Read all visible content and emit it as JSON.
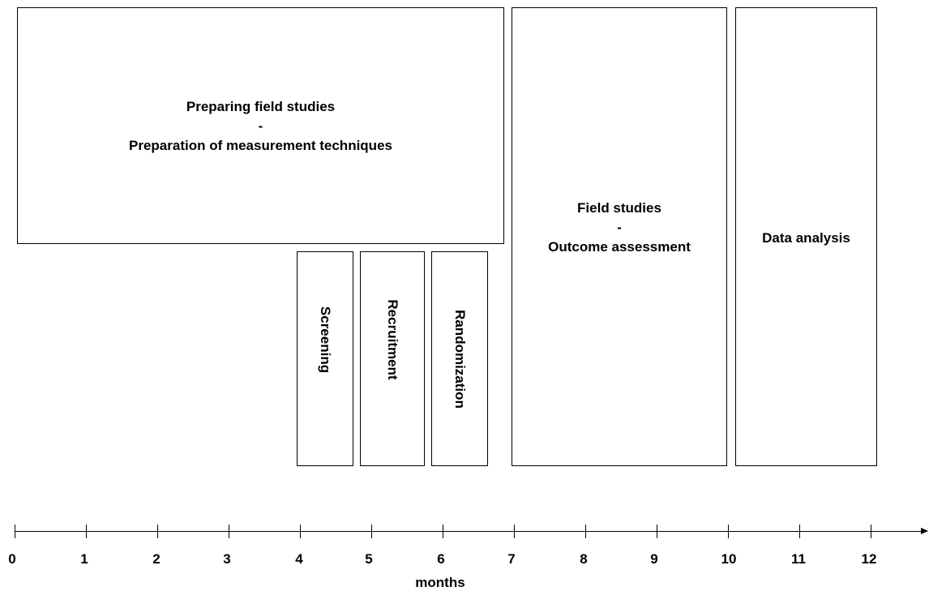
{
  "boxes": {
    "preparing": {
      "lines": [
        "Preparing field studies",
        "-",
        "Preparation of measurement techniques"
      ]
    },
    "field_studies": {
      "lines": [
        "Field studies",
        "-",
        "Outcome assessment"
      ]
    },
    "data_analysis": {
      "label": "Data analysis"
    },
    "screening": {
      "label": "Screening"
    },
    "recruitment": {
      "label": "Recruitment"
    },
    "randomization": {
      "label": "Randomization"
    }
  },
  "axis": {
    "title": "months",
    "ticks": [
      "0",
      "1",
      "2",
      "3",
      "4",
      "5",
      "6",
      "7",
      "8",
      "9",
      "10",
      "11",
      "12"
    ]
  }
}
